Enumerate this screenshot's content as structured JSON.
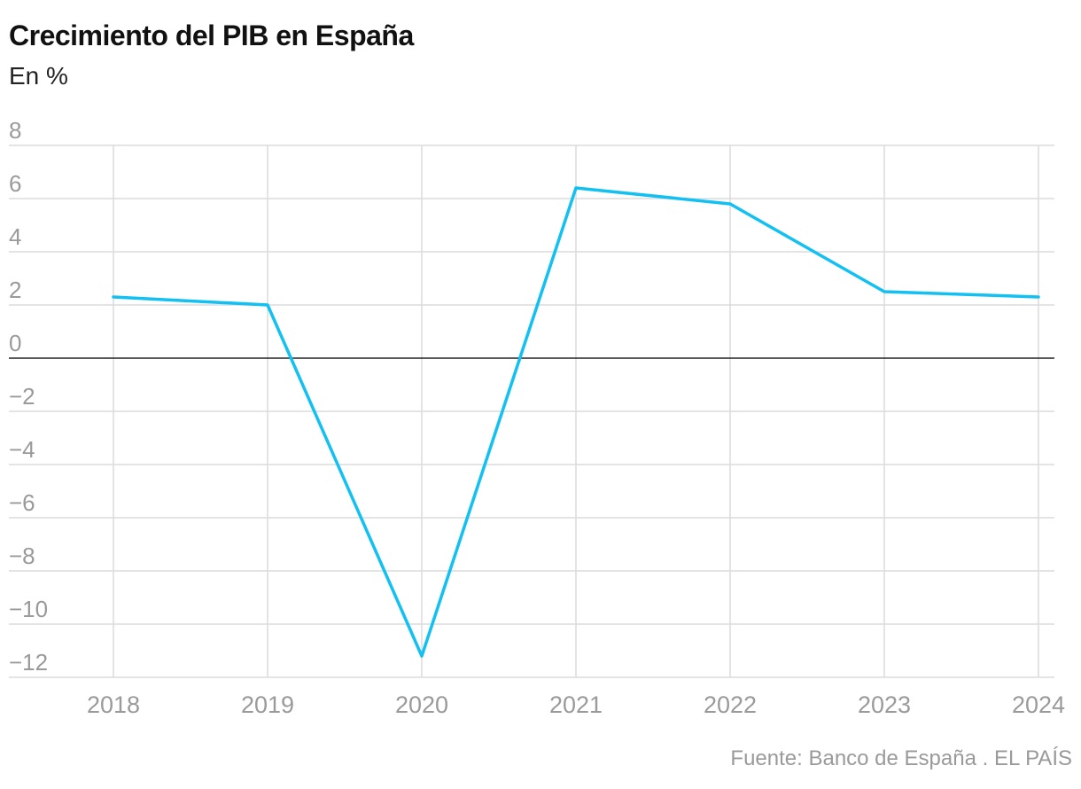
{
  "header": {
    "title": "Crecimiento del PIB en España",
    "subtitle": "En %"
  },
  "footer": {
    "source": "Fuente: Banco de España . EL PAÍS"
  },
  "colors": {
    "line": "#12c0f2",
    "grid": "#dcdcdc",
    "zero": "#222222",
    "tick_text": "#9a9a9a"
  },
  "chart_data": {
    "type": "line",
    "title": "Crecimiento del PIB en España",
    "subtitle": "En %",
    "xlabel": "",
    "ylabel": "",
    "x": [
      "2018",
      "2019",
      "2020",
      "2021",
      "2022",
      "2023",
      "2024"
    ],
    "series": [
      {
        "values": [
          2.3,
          2.0,
          -11.2,
          6.4,
          5.8,
          2.5,
          2.3
        ]
      }
    ],
    "ylim": [
      -12,
      8
    ],
    "yticks": [
      8,
      6,
      4,
      2,
      0,
      -2,
      -4,
      -6,
      -8,
      -10,
      -12
    ],
    "ytick_labels": [
      "8",
      "6",
      "4",
      "2",
      "0",
      "−2",
      "−4",
      "−6",
      "−8",
      "−10",
      "−12"
    ],
    "xtick_labels": [
      "2018",
      "2019",
      "2020",
      "2021",
      "2022",
      "2023",
      "2024"
    ],
    "grid": true,
    "legend": "none"
  }
}
